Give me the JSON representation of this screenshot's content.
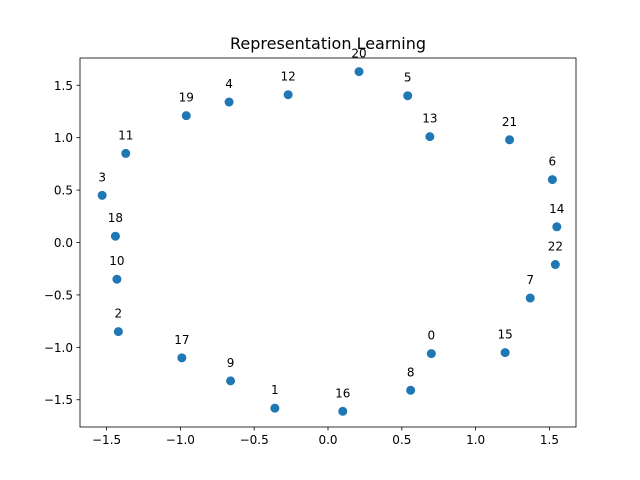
{
  "chart_data": {
    "type": "scatter",
    "title": "Representation Learning",
    "xlabel": "",
    "ylabel": "",
    "xlim": [
      -1.68,
      1.68
    ],
    "ylim": [
      -1.76,
      1.76
    ],
    "xticks": [
      -1.5,
      -1.0,
      -0.5,
      0.0,
      0.5,
      1.0,
      1.5
    ],
    "xtick_labels": [
      "−1.5",
      "−1.0",
      "−0.5",
      "0.0",
      "0.5",
      "1.0",
      "1.5"
    ],
    "yticks": [
      -1.5,
      -1.0,
      -0.5,
      0.0,
      0.5,
      1.0,
      1.5
    ],
    "ytick_labels": [
      "−1.5",
      "−1.0",
      "−0.5",
      "0.0",
      "0.5",
      "1.0",
      "1.5"
    ],
    "grid": false,
    "marker_color": "#1f77b4",
    "points": [
      {
        "label": "0",
        "x": 0.7,
        "y": -1.06
      },
      {
        "label": "1",
        "x": -0.36,
        "y": -1.58
      },
      {
        "label": "2",
        "x": -1.42,
        "y": -0.85
      },
      {
        "label": "3",
        "x": -1.53,
        "y": 0.45
      },
      {
        "label": "4",
        "x": -0.67,
        "y": 1.34
      },
      {
        "label": "5",
        "x": 0.54,
        "y": 1.4
      },
      {
        "label": "6",
        "x": 1.52,
        "y": 0.6
      },
      {
        "label": "7",
        "x": 1.37,
        "y": -0.53
      },
      {
        "label": "8",
        "x": 0.56,
        "y": -1.41
      },
      {
        "label": "9",
        "x": -0.66,
        "y": -1.32
      },
      {
        "label": "10",
        "x": -1.43,
        "y": -0.35
      },
      {
        "label": "11",
        "x": -1.37,
        "y": 0.85
      },
      {
        "label": "12",
        "x": -0.27,
        "y": 1.41
      },
      {
        "label": "13",
        "x": 0.69,
        "y": 1.01
      },
      {
        "label": "14",
        "x": 1.55,
        "y": 0.15
      },
      {
        "label": "15",
        "x": 1.2,
        "y": -1.05
      },
      {
        "label": "16",
        "x": 0.1,
        "y": -1.61
      },
      {
        "label": "17",
        "x": -0.99,
        "y": -1.1
      },
      {
        "label": "18",
        "x": -1.44,
        "y": 0.06
      },
      {
        "label": "19",
        "x": -0.96,
        "y": 1.21
      },
      {
        "label": "20",
        "x": 0.21,
        "y": 1.63
      },
      {
        "label": "21",
        "x": 1.23,
        "y": 0.98
      },
      {
        "label": "22",
        "x": 1.54,
        "y": -0.21
      }
    ]
  }
}
